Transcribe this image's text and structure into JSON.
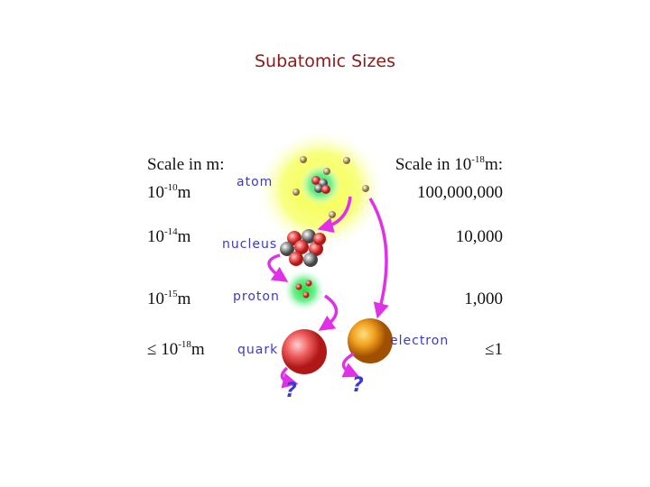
{
  "title": "Subatomic Sizes",
  "left_header": "Scale in  m:",
  "right_header": {
    "text": "Scale in 10",
    "exponent": "-18",
    "unit": "m:"
  },
  "rows": [
    {
      "particle": "atom",
      "size": {
        "base": "10",
        "exponent": "-10",
        "unit": "m"
      },
      "scaled": "100,000,000"
    },
    {
      "particle": "nucleus",
      "size": {
        "base": "10",
        "exponent": "-14",
        "unit": "m"
      },
      "scaled": "10,000"
    },
    {
      "particle": "proton",
      "size": {
        "base": "10",
        "exponent": "-15",
        "unit": "m"
      },
      "scaled": "1,000"
    },
    {
      "particle": "quark",
      "size": {
        "prefix": "≤ ",
        "base": "10",
        "exponent": "-18",
        "unit": "m"
      },
      "scaled": "≤1"
    }
  ],
  "electron": "electron",
  "unknowns": [
    "?",
    "?"
  ]
}
